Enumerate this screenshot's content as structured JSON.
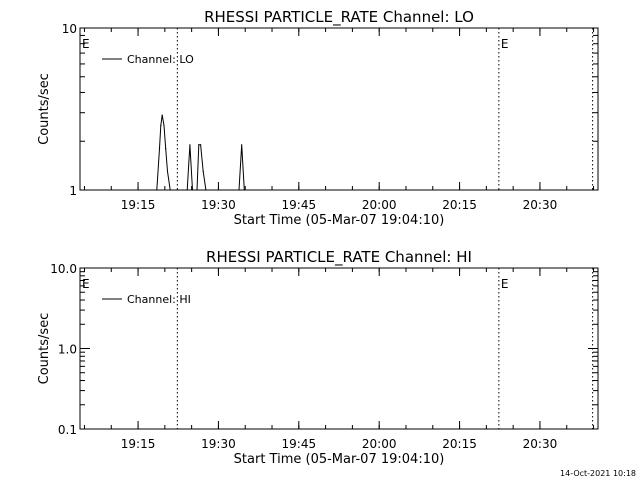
{
  "footer_timestamp": "14-Oct-2021 10:18",
  "chart_data": [
    {
      "type": "line",
      "title": "RHESSI PARTICLE_RATE Channel: LO",
      "xlabel": "Start Time (05-Mar-07 19:04:10)",
      "ylabel": "Counts/sec",
      "yscale": "log",
      "ylim": [
        1,
        10
      ],
      "ytick_values": [
        1,
        10
      ],
      "ytick_labels": [
        "1",
        "10"
      ],
      "xlim": [
        "19:04:10",
        "20:40:50"
      ],
      "xtick_values": [
        "19:15",
        "19:30",
        "19:45",
        "20:00",
        "20:15",
        "20:30"
      ],
      "xtick_labels": [
        "19:15",
        "19:30",
        "19:45",
        "20:00",
        "20:15",
        "20:30"
      ],
      "legend": {
        "position": "top-left",
        "entries": [
          "Channel: LO"
        ]
      },
      "vertical_markers": [
        "19:22:20",
        "20:22:20",
        "20:39:50"
      ],
      "marker_labels": [
        {
          "time": "19:04:10",
          "text": "E"
        },
        {
          "time": "20:22:20",
          "text": "E"
        }
      ],
      "series": [
        {
          "name": "Channel: LO",
          "x": [
            "19:18:30",
            "19:19:00",
            "19:19:15",
            "19:19:30",
            "19:19:50",
            "19:20:10",
            "19:20:30",
            "19:21:00",
            "19:24:10",
            "19:24:40",
            "19:25:10",
            "19:26:00",
            "19:26:20",
            "19:26:40",
            "19:27:10",
            "19:27:40",
            "19:33:50",
            "19:34:20",
            "19:34:50"
          ],
          "values": [
            1,
            1.8,
            2.5,
            2.9,
            2.5,
            1.8,
            1.3,
            1,
            1,
            1.9,
            1,
            1,
            1.9,
            1.9,
            1.3,
            1,
            1,
            1.9,
            1
          ]
        }
      ]
    },
    {
      "type": "line",
      "title": "RHESSI PARTICLE_RATE Channel: HI",
      "xlabel": "Start Time (05-Mar-07 19:04:10)",
      "ylabel": "Counts/sec",
      "yscale": "log",
      "ylim": [
        0.1,
        10
      ],
      "ytick_values": [
        0.1,
        1,
        10
      ],
      "ytick_labels": [
        "0.1",
        "1.0",
        "10.0"
      ],
      "xlim": [
        "19:04:10",
        "20:40:50"
      ],
      "xtick_values": [
        "19:15",
        "19:30",
        "19:45",
        "20:00",
        "20:15",
        "20:30"
      ],
      "xtick_labels": [
        "19:15",
        "19:30",
        "19:45",
        "20:00",
        "20:15",
        "20:30"
      ],
      "legend": {
        "position": "top-left",
        "entries": [
          "Channel: HI"
        ]
      },
      "vertical_markers": [
        "19:22:20",
        "20:22:20",
        "20:39:50"
      ],
      "marker_labels": [
        {
          "time": "19:04:10",
          "text": "E"
        },
        {
          "time": "20:22:20",
          "text": "E"
        }
      ],
      "series": [
        {
          "name": "Channel: HI",
          "x": [],
          "values": []
        }
      ]
    }
  ]
}
